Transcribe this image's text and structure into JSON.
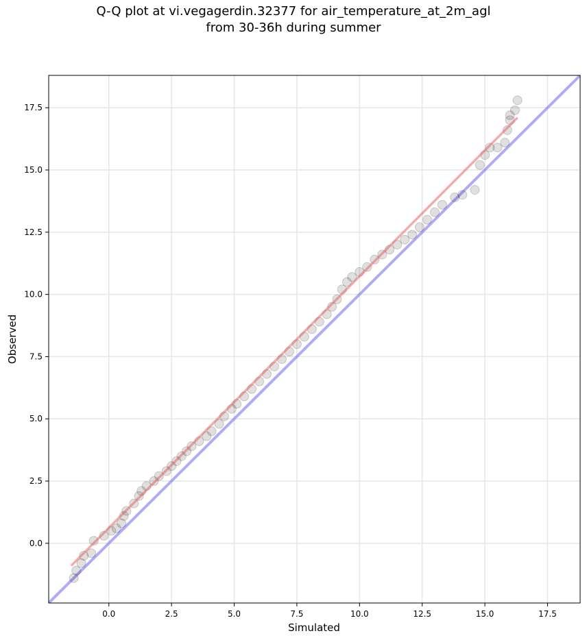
{
  "chart_data": {
    "type": "scatter",
    "title_line1": "Q-Q plot at vi.vegagerdin.32377 for air_temperature_at_2m_agl",
    "title_line2": "from 30-36h during summer",
    "xlabel": "Simulated",
    "ylabel": "Observed",
    "xlim": [
      -2.4,
      18.8
    ],
    "ylim": [
      -2.4,
      18.8
    ],
    "xticks": [
      0.0,
      2.5,
      5.0,
      7.5,
      10.0,
      12.5,
      15.0,
      17.5
    ],
    "xtick_labels": [
      "0.0",
      "2.5",
      "5.0",
      "7.5",
      "10.0",
      "12.5",
      "15.0",
      "17.5"
    ],
    "yticks": [
      0.0,
      2.5,
      5.0,
      7.5,
      10.0,
      12.5,
      15.0,
      17.5
    ],
    "ytick_labels": [
      "0.0",
      "2.5",
      "5.0",
      "7.5",
      "10.0",
      "12.5",
      "15.0",
      "17.5"
    ],
    "grid": true,
    "colors": {
      "points": "#000000",
      "fit_line": "#e85a5a",
      "identity_line": "#6a6af0",
      "grid": "#e6e6e6"
    },
    "series": [
      {
        "values": [
          {
            "x": -1.4,
            "y": -1.4
          },
          {
            "x": -1.3,
            "y": -1.1
          },
          {
            "x": -1.1,
            "y": -0.8
          },
          {
            "x": -1.0,
            "y": -0.5
          },
          {
            "x": -0.7,
            "y": -0.4
          },
          {
            "x": -0.6,
            "y": 0.1
          },
          {
            "x": -0.2,
            "y": 0.3
          },
          {
            "x": 0.1,
            "y": 0.5
          },
          {
            "x": 0.3,
            "y": 0.6
          },
          {
            "x": 0.5,
            "y": 0.8
          },
          {
            "x": 0.6,
            "y": 1.1
          },
          {
            "x": 0.7,
            "y": 1.3
          },
          {
            "x": 1.0,
            "y": 1.6
          },
          {
            "x": 1.2,
            "y": 1.9
          },
          {
            "x": 1.3,
            "y": 2.1
          },
          {
            "x": 1.5,
            "y": 2.3
          },
          {
            "x": 1.8,
            "y": 2.5
          },
          {
            "x": 2.0,
            "y": 2.7
          },
          {
            "x": 2.3,
            "y": 2.9
          },
          {
            "x": 2.5,
            "y": 3.1
          },
          {
            "x": 2.7,
            "y": 3.3
          },
          {
            "x": 2.9,
            "y": 3.5
          },
          {
            "x": 3.1,
            "y": 3.7
          },
          {
            "x": 3.3,
            "y": 3.9
          },
          {
            "x": 3.6,
            "y": 4.1
          },
          {
            "x": 3.9,
            "y": 4.3
          },
          {
            "x": 4.1,
            "y": 4.5
          },
          {
            "x": 4.4,
            "y": 4.8
          },
          {
            "x": 4.6,
            "y": 5.1
          },
          {
            "x": 4.9,
            "y": 5.4
          },
          {
            "x": 5.1,
            "y": 5.6
          },
          {
            "x": 5.4,
            "y": 5.9
          },
          {
            "x": 5.7,
            "y": 6.2
          },
          {
            "x": 6.0,
            "y": 6.5
          },
          {
            "x": 6.3,
            "y": 6.8
          },
          {
            "x": 6.6,
            "y": 7.1
          },
          {
            "x": 6.9,
            "y": 7.4
          },
          {
            "x": 7.2,
            "y": 7.7
          },
          {
            "x": 7.5,
            "y": 8.0
          },
          {
            "x": 7.8,
            "y": 8.3
          },
          {
            "x": 8.1,
            "y": 8.6
          },
          {
            "x": 8.4,
            "y": 8.9
          },
          {
            "x": 8.7,
            "y": 9.2
          },
          {
            "x": 8.9,
            "y": 9.5
          },
          {
            "x": 9.1,
            "y": 9.8
          },
          {
            "x": 9.3,
            "y": 10.2
          },
          {
            "x": 9.5,
            "y": 10.5
          },
          {
            "x": 9.7,
            "y": 10.7
          },
          {
            "x": 10.0,
            "y": 10.9
          },
          {
            "x": 10.3,
            "y": 11.1
          },
          {
            "x": 10.6,
            "y": 11.4
          },
          {
            "x": 10.9,
            "y": 11.6
          },
          {
            "x": 11.2,
            "y": 11.8
          },
          {
            "x": 11.5,
            "y": 12.0
          },
          {
            "x": 11.8,
            "y": 12.2
          },
          {
            "x": 12.1,
            "y": 12.4
          },
          {
            "x": 12.4,
            "y": 12.7
          },
          {
            "x": 12.7,
            "y": 13.0
          },
          {
            "x": 13.0,
            "y": 13.3
          },
          {
            "x": 13.3,
            "y": 13.6
          },
          {
            "x": 13.8,
            "y": 13.9
          },
          {
            "x": 14.1,
            "y": 14.0
          },
          {
            "x": 14.6,
            "y": 14.2
          },
          {
            "x": 14.8,
            "y": 15.2
          },
          {
            "x": 15.0,
            "y": 15.6
          },
          {
            "x": 15.2,
            "y": 15.9
          },
          {
            "x": 15.5,
            "y": 15.9
          },
          {
            "x": 15.8,
            "y": 16.1
          },
          {
            "x": 15.9,
            "y": 16.6
          },
          {
            "x": 16.0,
            "y": 17.0
          },
          {
            "x": 16.0,
            "y": 17.2
          },
          {
            "x": 16.2,
            "y": 17.4
          },
          {
            "x": 16.3,
            "y": 17.8
          }
        ]
      }
    ],
    "fit_line": {
      "x": [
        -1.5,
        16.3
      ],
      "y": [
        -0.9,
        17.1
      ]
    },
    "identity_line": {
      "x": [
        -2.4,
        18.8
      ],
      "y": [
        -2.4,
        18.8
      ]
    }
  }
}
